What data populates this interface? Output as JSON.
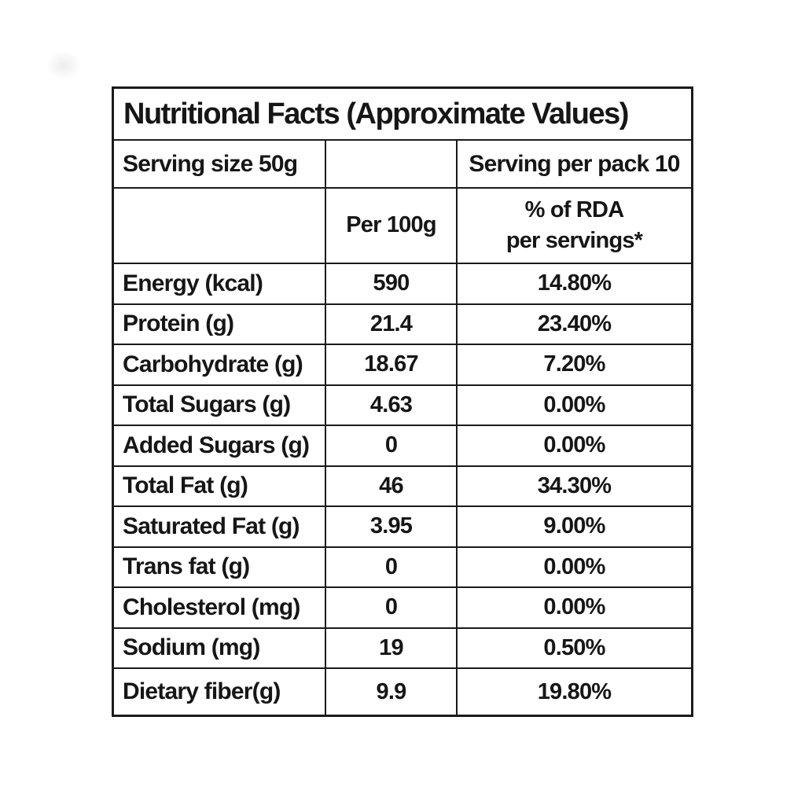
{
  "label": {
    "title": "Nutritional Facts (Approximate Values)",
    "serving_size": "Serving size 50g",
    "serving_per_pack": "Serving per pack 10",
    "columns": {
      "per_100g": "Per 100g",
      "rda_line1": "% of RDA",
      "rda_line2": "per servings*"
    },
    "rows": [
      {
        "label": "Energy (kcal)",
        "per100g": "590",
        "rda": "14.80%"
      },
      {
        "label": "Protein (g)",
        "per100g": "21.4",
        "rda": "23.40%"
      },
      {
        "label": "Carbohydrate (g)",
        "per100g": "18.67",
        "rda": "7.20%"
      },
      {
        "label": "Total Sugars (g)",
        "per100g": "4.63",
        "rda": "0.00%"
      },
      {
        "label": "Added Sugars (g)",
        "per100g": "0",
        "rda": "0.00%"
      },
      {
        "label": "Total Fat (g)",
        "per100g": "46",
        "rda": "34.30%"
      },
      {
        "label": "Saturated Fat (g)",
        "per100g": "3.95",
        "rda": "9.00%"
      },
      {
        "label": "Trans fat (g)",
        "per100g": "0",
        "rda": "0.00%"
      },
      {
        "label": "Cholesterol (mg)",
        "per100g": "0",
        "rda": "0.00%"
      },
      {
        "label": "Sodium (mg)",
        "per100g": "19",
        "rda": "0.50%"
      },
      {
        "label": "Dietary fiber(g)",
        "per100g": "9.9",
        "rda": "19.80%"
      }
    ],
    "colors": {
      "border": "#1a1a1a",
      "text": "#161616",
      "background": "#ffffff"
    }
  }
}
